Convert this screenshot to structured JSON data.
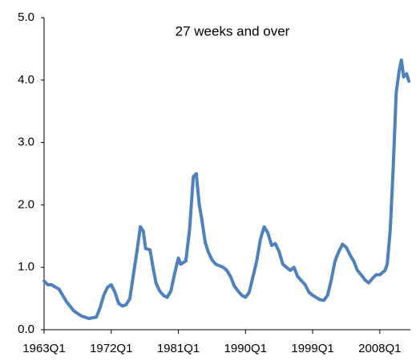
{
  "chart_data": {
    "type": "line",
    "title": "27 weeks and over",
    "x": [
      1963.0,
      1963.5,
      1964.0,
      1965.0,
      1966.0,
      1967.0,
      1968.0,
      1969.0,
      1970.0,
      1970.5,
      1971.0,
      1971.5,
      1972.0,
      1972.5,
      1973.0,
      1973.5,
      1974.0,
      1974.5,
      1975.0,
      1975.5,
      1975.9,
      1976.3,
      1976.6,
      1977.2,
      1977.6,
      1978.0,
      1978.5,
      1979.0,
      1979.5,
      1980.0,
      1980.5,
      1981.0,
      1981.3,
      1982.0,
      1982.5,
      1983.0,
      1983.4,
      1983.8,
      1984.1,
      1984.6,
      1985.0,
      1985.5,
      1986.0,
      1987.0,
      1987.5,
      1988.0,
      1988.5,
      1989.0,
      1989.5,
      1990.0,
      1990.5,
      1991.0,
      1991.5,
      1992.0,
      1992.5,
      1993.0,
      1993.5,
      1994.0,
      1994.5,
      1995.0,
      1996.0,
      1996.5,
      1997.0,
      1998.0,
      1998.5,
      1999.0,
      2000.0,
      2000.5,
      2001.0,
      2001.5,
      2002.0,
      2002.5,
      2003.0,
      2003.5,
      2004.0,
      2004.5,
      2005.0,
      2005.5,
      2006.0,
      2006.5,
      2007.0,
      2007.5,
      2008.0,
      2008.7,
      2009.0,
      2009.4,
      2009.8,
      2010.2,
      2010.6,
      2010.9,
      2011.2,
      2011.6,
      2011.9
    ],
    "values": [
      0.78,
      0.72,
      0.72,
      0.65,
      0.45,
      0.3,
      0.22,
      0.18,
      0.2,
      0.35,
      0.55,
      0.68,
      0.72,
      0.6,
      0.42,
      0.38,
      0.4,
      0.5,
      0.9,
      1.3,
      1.65,
      1.58,
      1.3,
      1.28,
      1.0,
      0.75,
      0.62,
      0.55,
      0.52,
      0.62,
      0.9,
      1.15,
      1.05,
      1.1,
      1.6,
      2.45,
      2.5,
      2.0,
      1.8,
      1.4,
      1.25,
      1.12,
      1.05,
      1.0,
      0.95,
      0.85,
      0.7,
      0.62,
      0.55,
      0.52,
      0.6,
      0.85,
      1.1,
      1.45,
      1.65,
      1.55,
      1.35,
      1.38,
      1.25,
      1.05,
      0.95,
      1.0,
      0.85,
      0.72,
      0.6,
      0.55,
      0.48,
      0.47,
      0.55,
      0.8,
      1.1,
      1.25,
      1.37,
      1.32,
      1.2,
      1.1,
      0.95,
      0.88,
      0.8,
      0.75,
      0.82,
      0.88,
      0.88,
      0.95,
      1.05,
      1.6,
      2.6,
      3.8,
      4.15,
      4.32,
      4.05,
      4.1,
      3.98
    ],
    "color": "#4f81bd",
    "xlim": [
      1963.0,
      2012.1
    ],
    "xticks": [
      {
        "value": 1963.0,
        "label": "1963Q1"
      },
      {
        "value": 1972.0,
        "label": "1972Q1"
      },
      {
        "value": 1981.0,
        "label": "1981Q1"
      },
      {
        "value": 1990.0,
        "label": "1990Q1"
      },
      {
        "value": 1999.0,
        "label": "1999Q1"
      },
      {
        "value": 2008.0,
        "label": "2008Q1"
      }
    ],
    "ylim": [
      0,
      5
    ],
    "yticks": [
      {
        "value": 0,
        "label": "0.0"
      },
      {
        "value": 1,
        "label": "1.0"
      },
      {
        "value": 2,
        "label": "2.0"
      },
      {
        "value": 3,
        "label": "3.0"
      },
      {
        "value": 4,
        "label": "4.0"
      },
      {
        "value": 5,
        "label": "5.0"
      }
    ],
    "grid": false
  }
}
